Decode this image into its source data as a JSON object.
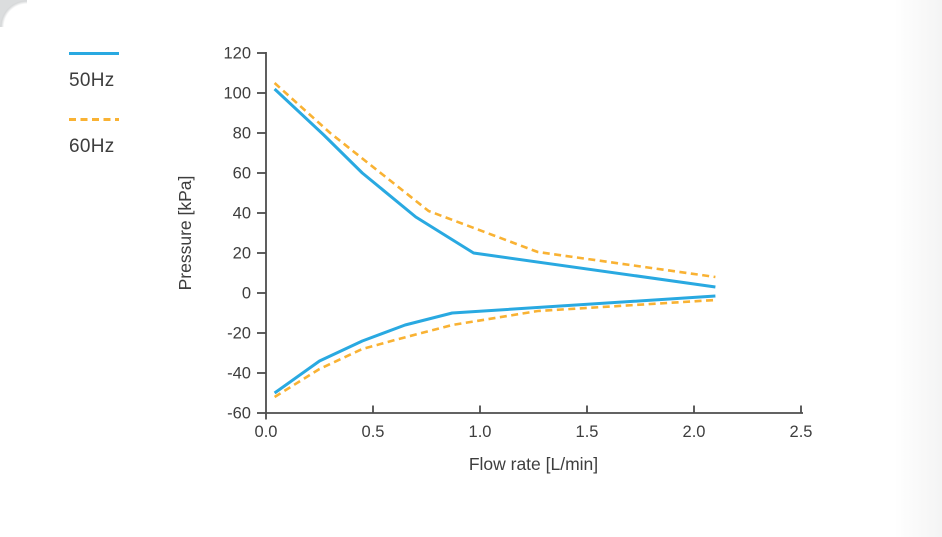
{
  "page": {
    "background": "#ffffff",
    "card_corner_color": "#d3d5d6"
  },
  "chart_data": {
    "type": "line",
    "title": "",
    "xlabel": "Flow rate [L/min]",
    "ylabel": "Pressure [kPa]",
    "xlim": [
      0,
      2.5
    ],
    "ylim": [
      -60,
      120
    ],
    "xticks": [
      0.0,
      0.5,
      1.0,
      1.5,
      2.0,
      2.5
    ],
    "xtick_labels": [
      "0.0",
      "0.5",
      "1.0",
      "1.5",
      "2.0",
      "2.5"
    ],
    "yticks": [
      -60,
      -40,
      -20,
      0,
      20,
      40,
      60,
      80,
      100,
      120
    ],
    "ytick_labels": [
      "-60",
      "-40",
      "-20",
      "0",
      "20",
      "40",
      "60",
      "80",
      "100",
      "120"
    ],
    "grid": false,
    "legend_position": "outside-top-left",
    "axis_color": "#4d4d4d",
    "text_color": "#3e3e3e",
    "series": [
      {
        "name": "50Hz",
        "color": "#29a9e1",
        "line_style": "solid",
        "line_width": 3,
        "curves": [
          {
            "label": "positive-pressure",
            "points": [
              [
                0.04,
                102
              ],
              [
                0.27,
                79
              ],
              [
                0.45,
                60
              ],
              [
                0.7,
                38
              ],
              [
                0.97,
                20
              ],
              [
                2.1,
                3
              ]
            ]
          },
          {
            "label": "negative-pressure",
            "points": [
              [
                0.04,
                -50
              ],
              [
                0.25,
                -34
              ],
              [
                0.45,
                -24
              ],
              [
                0.65,
                -16
              ],
              [
                0.87,
                -10
              ],
              [
                2.1,
                -1.5
              ]
            ]
          }
        ]
      },
      {
        "name": "60Hz",
        "color": "#f9b233",
        "line_style": "dashed",
        "line_width": 2.6,
        "curves": [
          {
            "label": "positive-pressure",
            "points": [
              [
                0.04,
                105
              ],
              [
                0.3,
                80
              ],
              [
                0.76,
                41
              ],
              [
                1.27,
                20.5
              ],
              [
                2.1,
                8
              ]
            ]
          },
          {
            "label": "negative-pressure",
            "points": [
              [
                0.04,
                -52
              ],
              [
                0.25,
                -38
              ],
              [
                0.45,
                -28
              ],
              [
                0.62,
                -23
              ],
              [
                0.87,
                -16
              ],
              [
                1.27,
                -9
              ],
              [
                2.1,
                -3.5
              ]
            ]
          }
        ]
      }
    ]
  }
}
